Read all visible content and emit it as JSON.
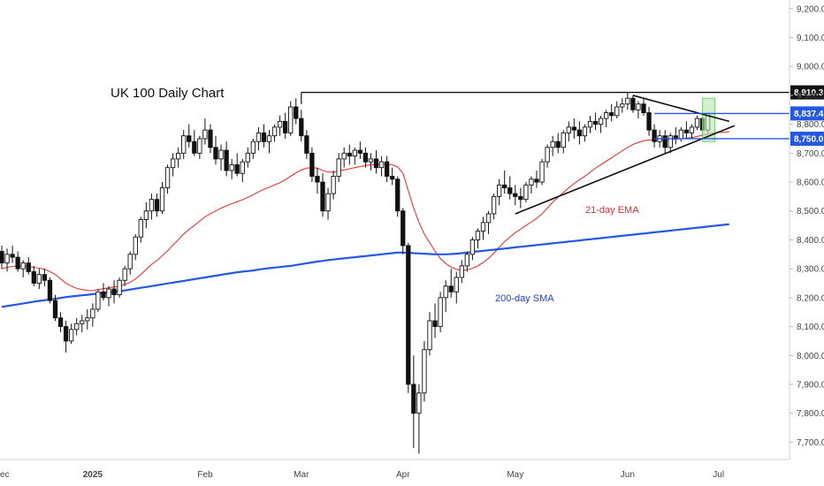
{
  "chart_data": {
    "type": "candlestick",
    "title": "UK 100 Daily Chart",
    "y_axis": {
      "min": 7640,
      "max": 9230,
      "ticks": [
        "9,200.0",
        "9,100.0",
        "9,000.0",
        "8,900.0",
        "8,800.0",
        "8,700.0",
        "8,600.0",
        "8,500.0",
        "8,400.0",
        "8,300.0",
        "8,200.0",
        "8,100.0",
        "8,000.0",
        "7,900.0",
        "7,800.0",
        "7,700.0"
      ],
      "tick_values": [
        9200,
        9100,
        9000,
        8900,
        8800,
        8700,
        8600,
        8500,
        8400,
        8300,
        8200,
        8100,
        8000,
        7900,
        7800,
        7700
      ]
    },
    "x_axis": {
      "labels": [
        "ec",
        "2025",
        "Feb",
        "Mar",
        "Apr",
        "May",
        "Jun",
        "Jul"
      ],
      "label_index": [
        -1,
        17,
        38,
        56,
        75,
        96,
        117,
        134
      ],
      "bold": [
        false,
        true,
        false,
        false,
        false,
        false,
        false,
        false
      ]
    },
    "ohlc": [
      [
        8360,
        8380,
        8300,
        8320
      ],
      [
        8320,
        8370,
        8290,
        8350
      ],
      [
        8350,
        8380,
        8320,
        8340
      ],
      [
        8340,
        8360,
        8290,
        8300
      ],
      [
        8300,
        8330,
        8270,
        8320
      ],
      [
        8320,
        8340,
        8280,
        8290
      ],
      [
        8290,
        8310,
        8240,
        8250
      ],
      [
        8250,
        8300,
        8230,
        8280
      ],
      [
        8280,
        8300,
        8240,
        8260
      ],
      [
        8260,
        8270,
        8180,
        8190
      ],
      [
        8190,
        8210,
        8120,
        8130
      ],
      [
        8130,
        8150,
        8080,
        8100
      ],
      [
        8100,
        8120,
        8010,
        8050
      ],
      [
        8050,
        8110,
        8040,
        8090
      ],
      [
        8090,
        8130,
        8070,
        8110
      ],
      [
        8110,
        8140,
        8080,
        8120
      ],
      [
        8120,
        8160,
        8090,
        8130
      ],
      [
        8130,
        8180,
        8100,
        8160
      ],
      [
        8160,
        8230,
        8150,
        8220
      ],
      [
        8220,
        8250,
        8190,
        8200
      ],
      [
        8200,
        8240,
        8170,
        8230
      ],
      [
        8230,
        8260,
        8180,
        8210
      ],
      [
        8210,
        8270,
        8200,
        8260
      ],
      [
        8260,
        8310,
        8240,
        8300
      ],
      [
        8300,
        8360,
        8280,
        8350
      ],
      [
        8350,
        8420,
        8330,
        8410
      ],
      [
        8410,
        8480,
        8390,
        8470
      ],
      [
        8470,
        8530,
        8440,
        8500
      ],
      [
        8500,
        8560,
        8470,
        8540
      ],
      [
        8540,
        8560,
        8480,
        8500
      ],
      [
        8500,
        8600,
        8490,
        8580
      ],
      [
        8580,
        8660,
        8560,
        8650
      ],
      [
        8650,
        8700,
        8620,
        8680
      ],
      [
        8680,
        8720,
        8650,
        8700
      ],
      [
        8700,
        8780,
        8680,
        8760
      ],
      [
        8760,
        8800,
        8720,
        8740
      ],
      [
        8740,
        8780,
        8690,
        8700
      ],
      [
        8700,
        8760,
        8680,
        8750
      ],
      [
        8750,
        8820,
        8730,
        8780
      ],
      [
        8780,
        8800,
        8700,
        8720
      ],
      [
        8720,
        8760,
        8660,
        8680
      ],
      [
        8680,
        8730,
        8640,
        8710
      ],
      [
        8710,
        8740,
        8620,
        8640
      ],
      [
        8640,
        8680,
        8610,
        8660
      ],
      [
        8660,
        8700,
        8620,
        8630
      ],
      [
        8630,
        8680,
        8600,
        8670
      ],
      [
        8670,
        8720,
        8650,
        8700
      ],
      [
        8700,
        8750,
        8680,
        8740
      ],
      [
        8740,
        8790,
        8710,
        8770
      ],
      [
        8770,
        8800,
        8720,
        8740
      ],
      [
        8740,
        8780,
        8700,
        8760
      ],
      [
        8760,
        8800,
        8740,
        8790
      ],
      [
        8790,
        8830,
        8760,
        8810
      ],
      [
        8810,
        8840,
        8750,
        8770
      ],
      [
        8770,
        8880,
        8760,
        8860
      ],
      [
        8860,
        8890,
        8800,
        8820
      ],
      [
        8820,
        8850,
        8740,
        8760
      ],
      [
        8760,
        8780,
        8680,
        8700
      ],
      [
        8700,
        8720,
        8600,
        8620
      ],
      [
        8620,
        8650,
        8560,
        8600
      ],
      [
        8600,
        8630,
        8480,
        8500
      ],
      [
        8500,
        8580,
        8470,
        8560
      ],
      [
        8560,
        8640,
        8540,
        8620
      ],
      [
        8620,
        8700,
        8600,
        8680
      ],
      [
        8680,
        8720,
        8650,
        8700
      ],
      [
        8700,
        8730,
        8660,
        8690
      ],
      [
        8690,
        8720,
        8660,
        8710
      ],
      [
        8710,
        8740,
        8680,
        8700
      ],
      [
        8700,
        8720,
        8650,
        8670
      ],
      [
        8670,
        8700,
        8640,
        8680
      ],
      [
        8680,
        8710,
        8630,
        8650
      ],
      [
        8650,
        8690,
        8620,
        8670
      ],
      [
        8670,
        8690,
        8600,
        8620
      ],
      [
        8620,
        8650,
        8590,
        8610
      ],
      [
        8610,
        8620,
        8480,
        8500
      ],
      [
        8500,
        8510,
        8350,
        8380
      ],
      [
        8380,
        8390,
        7870,
        7900
      ],
      [
        7900,
        8000,
        7680,
        7800
      ],
      [
        7800,
        7900,
        7660,
        7870
      ],
      [
        7870,
        8050,
        7840,
        8020
      ],
      [
        8020,
        8150,
        8000,
        8120
      ],
      [
        8120,
        8180,
        8060,
        8100
      ],
      [
        8100,
        8220,
        8080,
        8200
      ],
      [
        8200,
        8260,
        8150,
        8240
      ],
      [
        8240,
        8300,
        8200,
        8220
      ],
      [
        8220,
        8290,
        8180,
        8270
      ],
      [
        8270,
        8330,
        8250,
        8310
      ],
      [
        8310,
        8360,
        8290,
        8350
      ],
      [
        8350,
        8410,
        8330,
        8400
      ],
      [
        8400,
        8440,
        8370,
        8430
      ],
      [
        8430,
        8480,
        8400,
        8460
      ],
      [
        8460,
        8500,
        8420,
        8490
      ],
      [
        8490,
        8560,
        8470,
        8550
      ],
      [
        8550,
        8610,
        8520,
        8590
      ],
      [
        8590,
        8640,
        8560,
        8580
      ],
      [
        8580,
        8620,
        8540,
        8560
      ],
      [
        8560,
        8590,
        8520,
        8550
      ],
      [
        8550,
        8580,
        8510,
        8540
      ],
      [
        8540,
        8600,
        8530,
        8590
      ],
      [
        8590,
        8620,
        8560,
        8610
      ],
      [
        8610,
        8640,
        8580,
        8600
      ],
      [
        8600,
        8680,
        8590,
        8670
      ],
      [
        8670,
        8730,
        8650,
        8720
      ],
      [
        8720,
        8760,
        8690,
        8740
      ],
      [
        8740,
        8770,
        8700,
        8720
      ],
      [
        8720,
        8780,
        8700,
        8770
      ],
      [
        8770,
        8810,
        8740,
        8790
      ],
      [
        8790,
        8820,
        8750,
        8780
      ],
      [
        8780,
        8810,
        8730,
        8760
      ],
      [
        8760,
        8800,
        8740,
        8790
      ],
      [
        8790,
        8830,
        8770,
        8810
      ],
      [
        8810,
        8840,
        8780,
        8800
      ],
      [
        8800,
        8830,
        8770,
        8820
      ],
      [
        8820,
        8850,
        8790,
        8840
      ],
      [
        8840,
        8870,
        8810,
        8830
      ],
      [
        8830,
        8880,
        8820,
        8860
      ],
      [
        8860,
        8890,
        8840,
        8870
      ],
      [
        8870,
        8910,
        8850,
        8890
      ],
      [
        8890,
        8900,
        8840,
        8850
      ],
      [
        8850,
        8880,
        8820,
        8870
      ],
      [
        8870,
        8890,
        8830,
        8840
      ],
      [
        8840,
        8860,
        8760,
        8780
      ],
      [
        8780,
        8800,
        8720,
        8740
      ],
      [
        8740,
        8780,
        8720,
        8760
      ],
      [
        8760,
        8780,
        8700,
        8720
      ],
      [
        8720,
        8770,
        8700,
        8760
      ],
      [
        8760,
        8790,
        8730,
        8750
      ],
      [
        8750,
        8790,
        8740,
        8780
      ],
      [
        8780,
        8810,
        8750,
        8770
      ],
      [
        8770,
        8800,
        8750,
        8790
      ],
      [
        8790,
        8830,
        8780,
        8820
      ],
      [
        8820,
        8840,
        8760,
        8780
      ],
      [
        8780,
        8840,
        8770,
        8837
      ]
    ],
    "series": [
      {
        "name": "21-day EMA",
        "color": "#e53935",
        "values": [
          8300,
          8305,
          8308,
          8310,
          8310,
          8309,
          8305,
          8302,
          8298,
          8290,
          8280,
          8265,
          8250,
          8240,
          8232,
          8228,
          8225,
          8224,
          8228,
          8231,
          8234,
          8237,
          8240,
          8246,
          8253,
          8265,
          8280,
          8298,
          8315,
          8328,
          8345,
          8362,
          8382,
          8400,
          8420,
          8436,
          8450,
          8465,
          8480,
          8490,
          8500,
          8510,
          8518,
          8525,
          8532,
          8539,
          8547,
          8556,
          8566,
          8575,
          8582,
          8590,
          8598,
          8608,
          8620,
          8632,
          8642,
          8648,
          8650,
          8648,
          8640,
          8635,
          8634,
          8638,
          8642,
          8646,
          8650,
          8654,
          8657,
          8660,
          8661,
          8662,
          8662,
          8660,
          8652,
          8630,
          8570,
          8510,
          8460,
          8420,
          8390,
          8360,
          8335,
          8318,
          8306,
          8298,
          8294,
          8296,
          8302,
          8310,
          8322,
          8336,
          8354,
          8374,
          8394,
          8410,
          8425,
          8437,
          8450,
          8462,
          8474,
          8490,
          8510,
          8530,
          8548,
          8564,
          8580,
          8595,
          8608,
          8620,
          8634,
          8648,
          8660,
          8672,
          8684,
          8696,
          8708,
          8720,
          8730,
          8737,
          8743,
          8746,
          8746,
          8747,
          8746,
          8747,
          8748,
          8750,
          8752,
          8754,
          8758,
          8762,
          8766,
          8770,
          8772,
          8772,
          8775
        ]
      },
      {
        "name": "200-day SMA",
        "color": "#2458e0",
        "values": [
          8168,
          8171,
          8174,
          8177,
          8180,
          8183,
          8186,
          8189,
          8191,
          8194,
          8196,
          8199,
          8202,
          8204,
          8206,
          8208,
          8210,
          8212,
          8214,
          8216,
          8218,
          8220,
          8222,
          8225,
          8228,
          8231,
          8234,
          8237,
          8240,
          8243,
          8246,
          8249,
          8252,
          8255,
          8258,
          8261,
          8264,
          8267,
          8270,
          8273,
          8276,
          8279,
          8282,
          8285,
          8288,
          8290,
          8292,
          8294,
          8297,
          8300,
          8302,
          8304,
          8306,
          8308,
          8310,
          8313,
          8316,
          8319,
          8322,
          8325,
          8327,
          8330,
          8332,
          8334,
          8336,
          8338,
          8340,
          8342,
          8344,
          8346,
          8348,
          8350,
          8352,
          8354,
          8356,
          8356,
          8355,
          8354,
          8353,
          8352,
          8351,
          8350,
          8350,
          8350,
          8351,
          8352,
          8354,
          8356,
          8358,
          8360,
          8362,
          8364,
          8366,
          8368,
          8370,
          8372,
          8374,
          8376,
          8378,
          8380,
          8382,
          8384,
          8386,
          8388,
          8390,
          8392,
          8394,
          8396,
          8398,
          8400,
          8402,
          8404,
          8406,
          8408,
          8410,
          8412,
          8414,
          8416,
          8418,
          8420,
          8422,
          8424,
          8426,
          8428,
          8430,
          8432,
          8434,
          8436,
          8438,
          8440,
          8442,
          8444,
          8446,
          8448,
          8450,
          8452,
          8454
        ]
      }
    ],
    "horizontal_levels": [
      {
        "value": 8910.3,
        "label": "8,910.3",
        "color": "#111111"
      },
      {
        "value": 8837.4,
        "label": "8,837.4",
        "color": "#2458e0"
      },
      {
        "value": 8750.0,
        "label": "8,750.0",
        "color": "#2458e0"
      }
    ],
    "annotations": [
      {
        "text": "UK 100 Daily Chart"
      },
      {
        "text": "21-day EMA"
      },
      {
        "text": "200-day SMA"
      }
    ],
    "grid": false
  }
}
